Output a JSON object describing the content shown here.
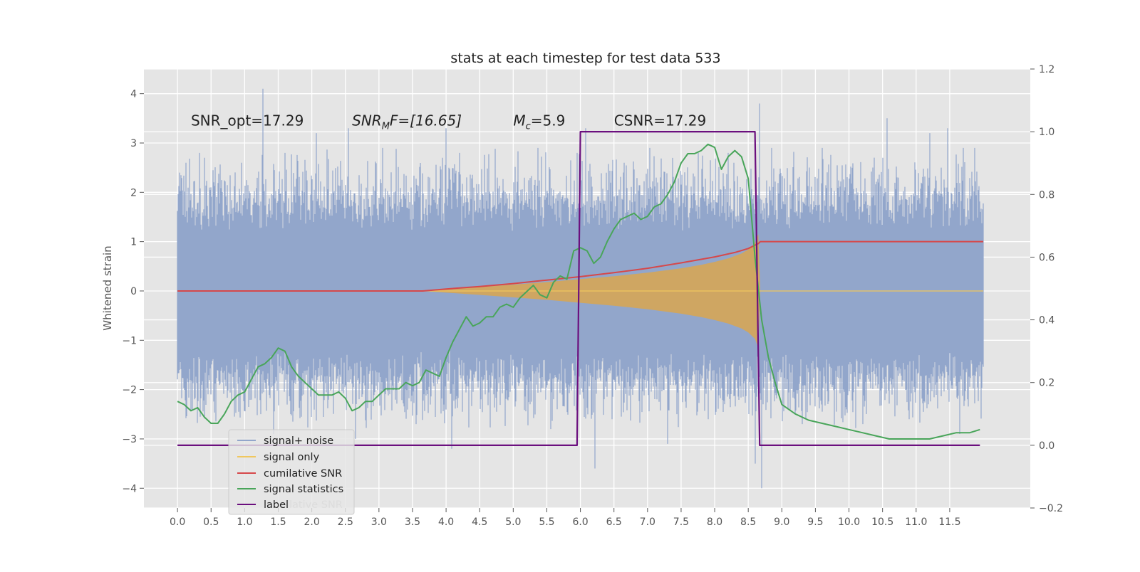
{
  "chart_data": {
    "type": "line",
    "title": "stats at each timestep for test data 533",
    "ylabel": "Whitened strain",
    "xlabel": "",
    "xlim": [
      -0.5,
      12.7
    ],
    "ylim": [
      -4.4,
      4.5
    ],
    "ylim_right": [
      -0.2,
      1.2
    ],
    "xticks": [
      "0.0",
      "0.5",
      "1.0",
      "1.5",
      "2.0",
      "2.5",
      "3.0",
      "3.5",
      "4.0",
      "4.5",
      "5.0",
      "5.5",
      "6.0",
      "6.5",
      "7.0",
      "7.5",
      "8.0",
      "8.5",
      "9.0",
      "9.5",
      "10.0",
      "10.5",
      "11.0",
      "11.5"
    ],
    "xtick_values": [
      0.0,
      0.5,
      1.0,
      1.5,
      2.0,
      2.5,
      3.0,
      3.5,
      4.0,
      4.5,
      5.0,
      5.5,
      6.0,
      6.5,
      7.0,
      7.5,
      8.0,
      8.5,
      9.0,
      9.5,
      10.0,
      10.5,
      11.0,
      11.5
    ],
    "yticks_left": [
      -4,
      -3,
      -2,
      -1,
      0,
      1,
      2,
      3,
      4
    ],
    "yticks_right": [
      -0.2,
      0.0,
      0.2,
      0.4,
      0.6,
      0.8,
      1.0,
      1.2
    ],
    "grid": true,
    "legend_position": "lower-left",
    "annotations": [
      {
        "id": "snr-opt",
        "text": "SNR_opt=17.29",
        "x": 0.2,
        "y": 3.35
      },
      {
        "id": "snr-mf",
        "text_main": "SNR",
        "text_sub": "M",
        "text_tail": "F=[16.65]",
        "x": 2.6,
        "y": 3.35
      },
      {
        "id": "mc",
        "text_main": "M",
        "text_sub": "c",
        "text_tail": "=5.9",
        "x": 5.0,
        "y": 3.35
      },
      {
        "id": "csnr",
        "text": "CSNR=17.29",
        "x": 6.5,
        "y": 3.35
      }
    ],
    "legend": [
      {
        "id": "signal-noise",
        "label": "signal+ noise",
        "color": "#92a6cb"
      },
      {
        "id": "signal-only",
        "label": "signal only",
        "color": "#f0c75e"
      },
      {
        "id": "cumulative-snr",
        "label": "cumilative SNR",
        "color": "#d6484a"
      },
      {
        "id": "signal-statistics",
        "label": "signal statistics",
        "color": "#49a55a"
      },
      {
        "id": "label",
        "label": "label",
        "color": "#6b0f7e"
      }
    ],
    "legend_ghost_text": "lative SNR",
    "series": [
      {
        "name": "signal+ noise",
        "axis": "left",
        "style": "noise",
        "color": "#92a6cb",
        "x_range": [
          0.0,
          12.0
        ],
        "typical_envelope": 2.0,
        "peak_samples": [
          [
            0.03,
            2.4
          ],
          [
            0.13,
            2.6
          ],
          [
            0.33,
            2.8
          ],
          [
            0.95,
            2.6
          ],
          [
            1.27,
            4.1
          ],
          [
            1.43,
            -2.9
          ],
          [
            1.6,
            2.8
          ],
          [
            2.07,
            3.2
          ],
          [
            2.55,
            3.3
          ],
          [
            2.65,
            -3.0
          ],
          [
            3.05,
            2.9
          ],
          [
            3.55,
            -2.7
          ],
          [
            3.75,
            2.3
          ],
          [
            4.0,
            3.3
          ],
          [
            4.08,
            -3.2
          ],
          [
            4.2,
            2.8
          ],
          [
            5.37,
            2.9
          ],
          [
            5.56,
            -2.8
          ],
          [
            5.95,
            2.8
          ],
          [
            6.08,
            3.3
          ],
          [
            6.22,
            -3.6
          ],
          [
            6.47,
            -2.6
          ],
          [
            6.65,
            2.6
          ],
          [
            7.03,
            2.9
          ],
          [
            7.3,
            -3.1
          ],
          [
            7.75,
            2.8
          ],
          [
            7.9,
            -2.6
          ],
          [
            8.2,
            2.8
          ],
          [
            8.6,
            -3.5
          ],
          [
            8.67,
            3.8
          ],
          [
            8.7,
            -4.0
          ],
          [
            8.85,
            2.9
          ],
          [
            9.3,
            -2.7
          ],
          [
            9.6,
            2.9
          ],
          [
            10.5,
            2.7
          ],
          [
            10.57,
            3.5
          ],
          [
            10.9,
            -2.6
          ],
          [
            11.2,
            3.2
          ],
          [
            11.47,
            3.3
          ],
          [
            11.65,
            -2.9
          ],
          [
            11.7,
            2.9
          ],
          [
            11.87,
            2.9
          ]
        ]
      },
      {
        "name": "signal only",
        "axis": "left",
        "style": "chirp-envelope",
        "color": "#f0c75e",
        "fill_color": "#d3a55c",
        "x": [
          3.65,
          4.5,
          5.0,
          5.5,
          6.0,
          6.5,
          7.0,
          7.5,
          7.8,
          8.0,
          8.2,
          8.4,
          8.5,
          8.6,
          8.65,
          8.68,
          9.0,
          12.0
        ],
        "amplitude": [
          0.0,
          0.08,
          0.13,
          0.18,
          0.24,
          0.3,
          0.37,
          0.46,
          0.53,
          0.59,
          0.66,
          0.76,
          0.84,
          0.97,
          1.15,
          0.0,
          0.0,
          0.0
        ]
      },
      {
        "name": "cumilative SNR",
        "axis": "left",
        "color": "#d6484a",
        "x": [
          0.0,
          3.65,
          4.0,
          4.5,
          5.0,
          5.5,
          6.0,
          6.5,
          7.0,
          7.5,
          8.0,
          8.3,
          8.5,
          8.65,
          8.68,
          12.0
        ],
        "y": [
          0.0,
          0.0,
          0.04,
          0.09,
          0.15,
          0.22,
          0.29,
          0.37,
          0.46,
          0.57,
          0.69,
          0.78,
          0.86,
          0.96,
          1.0,
          1.0
        ]
      },
      {
        "name": "signal statistics",
        "axis": "right",
        "color": "#49a55a",
        "x": [
          0.0,
          0.1,
          0.2,
          0.3,
          0.4,
          0.5,
          0.6,
          0.7,
          0.8,
          0.9,
          1.0,
          1.1,
          1.2,
          1.3,
          1.4,
          1.5,
          1.6,
          1.7,
          1.8,
          1.9,
          2.0,
          2.1,
          2.2,
          2.3,
          2.4,
          2.5,
          2.6,
          2.7,
          2.8,
          2.9,
          3.0,
          3.1,
          3.2,
          3.3,
          3.4,
          3.5,
          3.6,
          3.7,
          3.8,
          3.9,
          4.0,
          4.1,
          4.2,
          4.3,
          4.4,
          4.5,
          4.6,
          4.7,
          4.8,
          4.9,
          5.0,
          5.1,
          5.2,
          5.3,
          5.4,
          5.5,
          5.6,
          5.7,
          5.8,
          5.9,
          6.0,
          6.1,
          6.2,
          6.3,
          6.4,
          6.5,
          6.6,
          6.7,
          6.8,
          6.9,
          7.0,
          7.1,
          7.2,
          7.3,
          7.4,
          7.5,
          7.6,
          7.7,
          7.8,
          7.9,
          8.0,
          8.1,
          8.2,
          8.3,
          8.4,
          8.5,
          8.6,
          8.7,
          8.8,
          8.9,
          9.0,
          9.2,
          9.4,
          9.6,
          9.8,
          10.0,
          10.2,
          10.4,
          10.6,
          10.8,
          11.0,
          11.2,
          11.4,
          11.6,
          11.8,
          11.95
        ],
        "y": [
          0.14,
          0.13,
          0.11,
          0.12,
          0.09,
          0.07,
          0.07,
          0.1,
          0.14,
          0.16,
          0.17,
          0.21,
          0.25,
          0.26,
          0.28,
          0.31,
          0.3,
          0.25,
          0.22,
          0.2,
          0.18,
          0.16,
          0.16,
          0.16,
          0.17,
          0.15,
          0.11,
          0.12,
          0.14,
          0.14,
          0.16,
          0.18,
          0.18,
          0.18,
          0.2,
          0.19,
          0.2,
          0.24,
          0.23,
          0.22,
          0.28,
          0.33,
          0.37,
          0.41,
          0.38,
          0.39,
          0.41,
          0.41,
          0.44,
          0.45,
          0.44,
          0.47,
          0.49,
          0.51,
          0.48,
          0.47,
          0.52,
          0.54,
          0.53,
          0.62,
          0.63,
          0.62,
          0.58,
          0.6,
          0.65,
          0.69,
          0.72,
          0.73,
          0.74,
          0.72,
          0.73,
          0.76,
          0.77,
          0.8,
          0.84,
          0.9,
          0.93,
          0.93,
          0.94,
          0.96,
          0.95,
          0.88,
          0.92,
          0.94,
          0.92,
          0.85,
          0.6,
          0.4,
          0.28,
          0.2,
          0.13,
          0.1,
          0.08,
          0.07,
          0.06,
          0.05,
          0.04,
          0.03,
          0.02,
          0.02,
          0.02,
          0.02,
          0.03,
          0.04,
          0.04,
          0.05
        ]
      },
      {
        "name": "label",
        "axis": "right",
        "color": "#6b0f7e",
        "x": [
          0.0,
          5.95,
          6.0,
          8.6,
          8.67,
          11.95
        ],
        "y": [
          0.0,
          0.0,
          1.0,
          1.0,
          0.0,
          0.0
        ]
      }
    ]
  }
}
